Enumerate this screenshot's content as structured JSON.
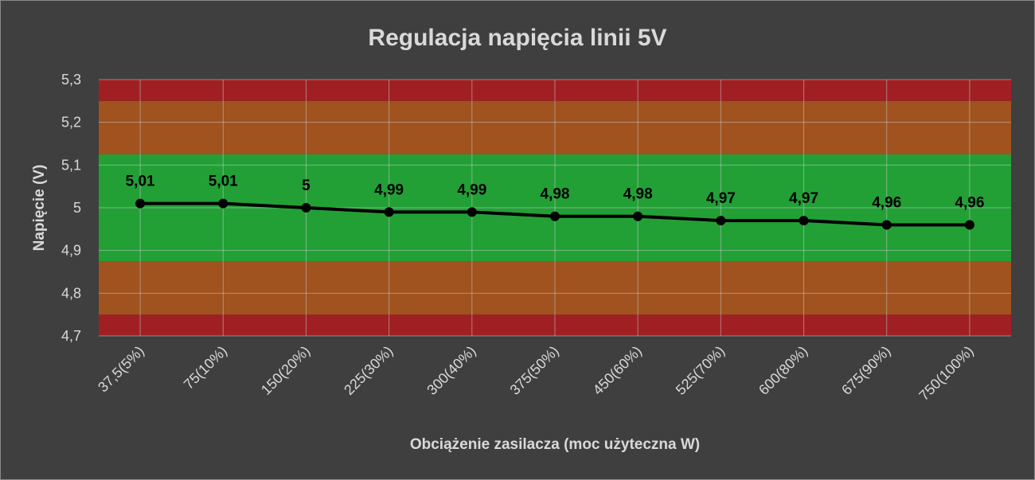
{
  "chart_data": {
    "type": "line",
    "title": "Regulacja napięcia linii 5V",
    "xlabel": "Obciążenie zasilacza (moc użyteczna W)",
    "ylabel": "Napięcie (V)",
    "categories": [
      "37,5(5%)",
      "75(10%)",
      "150(20%)",
      "225(30%)",
      "300(40%)",
      "375(50%)",
      "450(60%)",
      "525(70%)",
      "600(80%)",
      "675(90%)",
      "750(100%)"
    ],
    "series": [
      {
        "values": [
          5.01,
          5.01,
          5.0,
          4.99,
          4.99,
          4.98,
          4.98,
          4.97,
          4.97,
          4.96,
          4.96
        ],
        "labels": [
          "5,01",
          "5,01",
          "5",
          "4,99",
          "4,99",
          "4,98",
          "4,98",
          "4,97",
          "4,97",
          "4,96",
          "4,96"
        ],
        "color": "#000000"
      }
    ],
    "ylim": [
      4.7,
      5.3
    ],
    "yticks": [
      4.7,
      4.8,
      4.9,
      5.0,
      5.1,
      5.2,
      5.3
    ],
    "ytick_labels": [
      "4,7",
      "4,8",
      "4,9",
      "5",
      "5,1",
      "5,2",
      "5,3"
    ],
    "grid": true,
    "bands": [
      {
        "from": 4.7,
        "to": 4.75,
        "color": "#a01f22"
      },
      {
        "from": 4.75,
        "to": 4.875,
        "color": "#a0521f"
      },
      {
        "from": 4.875,
        "to": 5.125,
        "color": "#22a036"
      },
      {
        "from": 5.125,
        "to": 5.25,
        "color": "#a0521f"
      },
      {
        "from": 5.25,
        "to": 5.3,
        "color": "#a01f22"
      }
    ],
    "colors": {
      "background": "#3f3f3f",
      "text": "#d9d9d9",
      "grid": "#c8c8c8",
      "line": "#000000"
    }
  }
}
